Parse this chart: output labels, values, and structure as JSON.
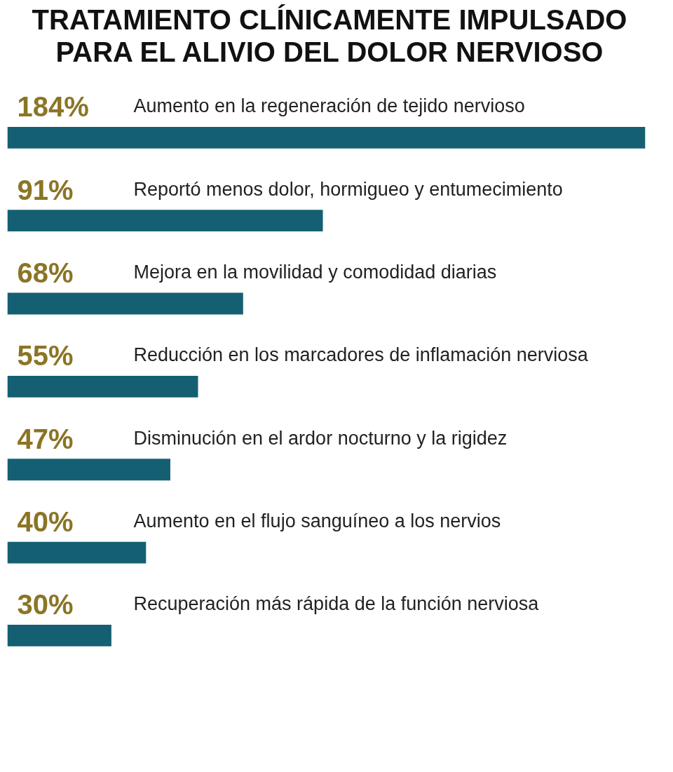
{
  "chart_data": {
    "type": "bar",
    "orientation": "horizontal",
    "title": "TRATAMIENTO CLÍNICAMENTE IMPULSADO PARA EL ALIVIO DEL DOLOR NERVIOSO",
    "categories": [
      "Aumento en la regeneración de tejido nervioso",
      "Reportó menos dolor, hormigueo y entumecimiento",
      "Mejora en la movilidad y comodidad diarias",
      "Reducción en los marcadores de inflamación nerviosa",
      "Disminución en el ardor nocturno y la rigidez",
      "Aumento en el flujo sanguíneo a los nervios",
      "Recuperación más rápida de la función nerviosa"
    ],
    "values": [
      184,
      91,
      68,
      55,
      47,
      40,
      30
    ],
    "value_labels": [
      "184%",
      "91%",
      "68%",
      "55%",
      "47%",
      "40%",
      "30%"
    ],
    "color": "#155f73",
    "xlim": [
      0,
      184
    ],
    "tick_labels": false,
    "grid": false
  }
}
